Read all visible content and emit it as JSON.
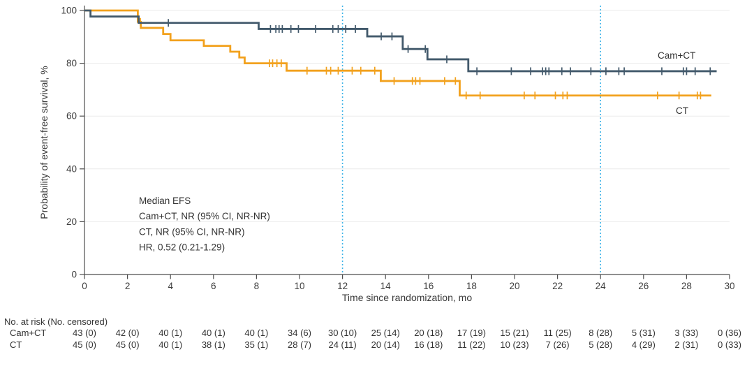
{
  "chart_data": {
    "type": "line",
    "subtype": "kaplan-meier-step",
    "title": "",
    "xlabel": "Time since randomization, mo",
    "ylabel": "Probability of event-free survival, %",
    "xlim": [
      0,
      30
    ],
    "ylim": [
      0,
      100
    ],
    "xticks": [
      0,
      2,
      4,
      6,
      8,
      10,
      12,
      14,
      16,
      18,
      20,
      22,
      24,
      26,
      28,
      30
    ],
    "yticks": [
      0,
      20,
      40,
      60,
      80,
      100
    ],
    "grid": "horizontal-light",
    "reference_lines_x": [
      12,
      24
    ],
    "reference_line_color": "#3fb4e8",
    "annotation_lines": [
      "Median EFS",
      "Cam+CT, NR (95% CI, NR-NR)",
      "CT, NR (95% CI, NR-NR)",
      "HR, 0.52 (0.21-1.29)"
    ],
    "series": [
      {
        "name": "CT",
        "color": "#f2a11d",
        "end_time": 29.15,
        "steps": [
          [
            0,
            100
          ],
          [
            2.48,
            95.7
          ],
          [
            2.62,
            93.4
          ],
          [
            3.66,
            91.1
          ],
          [
            4.0,
            88.7
          ],
          [
            5.55,
            86.6
          ],
          [
            6.78,
            84.4
          ],
          [
            7.2,
            82.2
          ],
          [
            7.45,
            80.0
          ],
          [
            9.4,
            77.2
          ],
          [
            13.78,
            73.3
          ],
          [
            17.45,
            67.8
          ]
        ],
        "censor_times": [
          2.6,
          8.6,
          8.75,
          8.95,
          9.15,
          10.35,
          11.25,
          11.45,
          11.8,
          12.45,
          12.85,
          13.5,
          14.4,
          15.25,
          15.4,
          15.6,
          16.75,
          17.25,
          17.75,
          18.4,
          20.45,
          20.95,
          21.9,
          22.25,
          22.45,
          26.65,
          27.65,
          28.5,
          28.65
        ]
      },
      {
        "name": "Cam+CT",
        "color": "#42596b",
        "end_time": 29.4,
        "steps": [
          [
            0,
            100
          ],
          [
            0.28,
            97.7
          ],
          [
            2.52,
            95.3
          ],
          [
            8.1,
            93.0
          ],
          [
            13.15,
            90.2
          ],
          [
            14.8,
            85.4
          ],
          [
            15.95,
            81.5
          ],
          [
            17.85,
            77.0
          ]
        ],
        "censor_times": [
          3.9,
          8.65,
          8.9,
          9.05,
          9.2,
          9.6,
          9.95,
          10.75,
          11.55,
          11.8,
          12.15,
          12.6,
          13.8,
          14.3,
          15.05,
          15.85,
          16.85,
          18.25,
          19.85,
          20.75,
          21.3,
          21.45,
          21.6,
          22.2,
          22.6,
          23.55,
          24.25,
          24.85,
          25.1,
          26.85,
          27.85,
          28.0,
          28.4,
          29.1
        ]
      }
    ],
    "series_labels": [
      {
        "text": "Cam+CT",
        "color": "#333333"
      },
      {
        "text": "CT",
        "color": "#333333"
      }
    ]
  },
  "risk_table": {
    "title": "No. at risk (No. censored)",
    "times": [
      0,
      2,
      4,
      6,
      8,
      10,
      12,
      14,
      16,
      18,
      20,
      22,
      24,
      26,
      28,
      30
    ],
    "rows": [
      {
        "label": "Cam+CT",
        "values": [
          "43 (0)",
          "42 (0)",
          "40 (1)",
          "40 (1)",
          "40 (1)",
          "34 (6)",
          "30 (10)",
          "25 (14)",
          "20 (18)",
          "17 (19)",
          "15 (21)",
          "11 (25)",
          "8 (28)",
          "5 (31)",
          "3 (33)",
          "0 (36)"
        ]
      },
      {
        "label": "CT",
        "values": [
          "45 (0)",
          "45 (0)",
          "40 (1)",
          "38 (1)",
          "35 (1)",
          "28 (7)",
          "24 (11)",
          "20 (14)",
          "16 (18)",
          "11 (22)",
          "10 (23)",
          "7 (26)",
          "5 (28)",
          "4 (29)",
          "2 (31)",
          "0 (33)"
        ]
      }
    ]
  },
  "colors": {
    "cam_ct_line": "#42596b",
    "ct_line": "#f2a11d",
    "reference_dotted": "#3fb4e8",
    "gridline": "#ebebeb",
    "axis": "#4d4d4d",
    "text": "#333333"
  }
}
